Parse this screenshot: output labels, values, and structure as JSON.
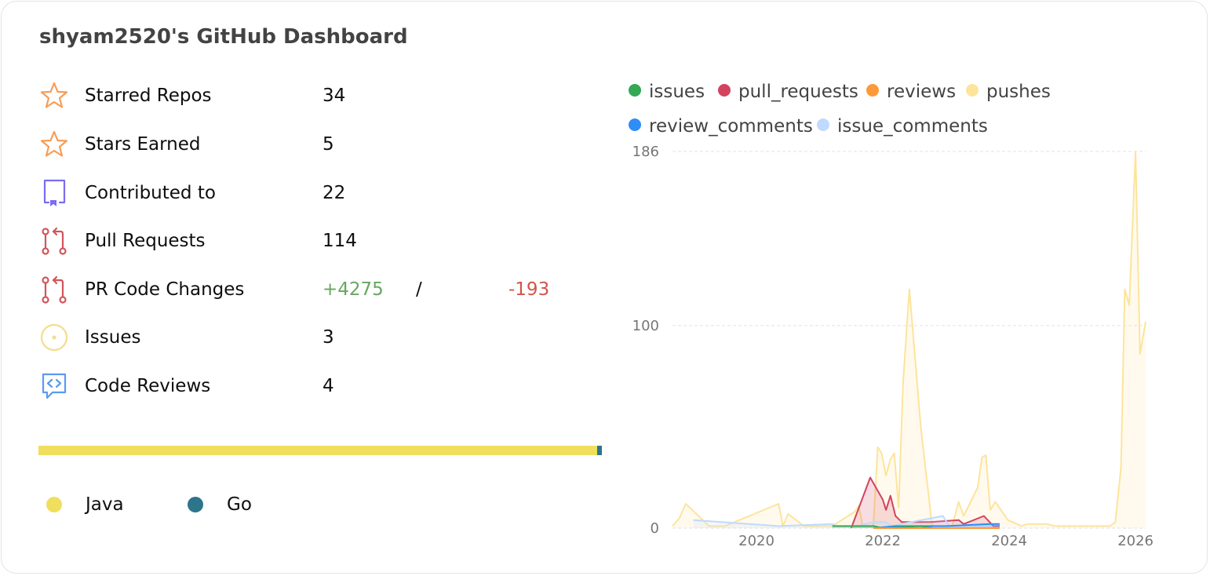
{
  "header": {
    "title": "shyam2520's GitHub Dashboard"
  },
  "stats": [
    {
      "icon": "star-icon",
      "label": "Starred Repos",
      "value": "34",
      "color": "#f89c55"
    },
    {
      "icon": "star-icon",
      "label": "Stars Earned",
      "value": "5",
      "color": "#f89c55"
    },
    {
      "icon": "repo-icon",
      "label": "Contributed to",
      "value": "22",
      "color": "#7b6cf0"
    },
    {
      "icon": "git-pull-request-icon",
      "label": "Pull Requests",
      "value": "114",
      "color": "#d1555a"
    },
    {
      "icon": "git-pull-request-icon",
      "label": "PR Code Changes",
      "additions": "+4275",
      "separator": "/",
      "deletions": "-193",
      "color": "#d1555a",
      "additions_color": "#68a660",
      "deletions_color": "#d1554a"
    },
    {
      "icon": "issue-opened-icon",
      "label": "Issues",
      "value": "3",
      "color": "#f5dc8f"
    },
    {
      "icon": "code-review-icon",
      "label": "Code Reviews",
      "value": "4",
      "color": "#5b9af1"
    }
  ],
  "languages": [
    {
      "name": "Java",
      "color": "#f0df5c",
      "percent": 99.1
    },
    {
      "name": "Go",
      "color": "#2c758a",
      "percent": 0.9
    }
  ],
  "legend": [
    {
      "name": "issues",
      "color": "#34a853"
    },
    {
      "name": "pull_requests",
      "color": "#d3435e"
    },
    {
      "name": "reviews",
      "color": "#fb9a3a"
    },
    {
      "name": "pushes",
      "color": "#fde49c"
    },
    {
      "name": "review_comments",
      "color": "#2f8ef5"
    },
    {
      "name": "issue_comments",
      "color": "#bfdafd"
    }
  ],
  "axis": {
    "y_ticks": [
      "0",
      "100",
      "186"
    ],
    "x_ticks": [
      "2020",
      "2022",
      "2024",
      "2026"
    ]
  },
  "chart_data": {
    "type": "area",
    "title": "",
    "xlabel": "",
    "ylabel": "",
    "ylim": [
      0,
      186
    ],
    "xlim": [
      2018.67,
      2026.16
    ],
    "grid": true,
    "legend_position": "top",
    "x_ticks": [
      2020,
      2022,
      2024,
      2026
    ],
    "y_ticks": [
      0,
      100,
      186
    ],
    "series": [
      {
        "name": "pushes",
        "color": "#fde49c",
        "points": [
          [
            2018.67,
            1
          ],
          [
            2018.78,
            5
          ],
          [
            2018.88,
            12
          ],
          [
            2019.25,
            1
          ],
          [
            2019.5,
            1
          ],
          [
            2020.35,
            12
          ],
          [
            2020.42,
            1
          ],
          [
            2020.5,
            7
          ],
          [
            2020.75,
            1
          ],
          [
            2021.2,
            1
          ],
          [
            2021.55,
            8
          ],
          [
            2021.62,
            11
          ],
          [
            2021.68,
            1
          ],
          [
            2021.85,
            1
          ],
          [
            2021.92,
            40
          ],
          [
            2021.98,
            37
          ],
          [
            2022.05,
            26
          ],
          [
            2022.12,
            34
          ],
          [
            2022.18,
            37
          ],
          [
            2022.25,
            10
          ],
          [
            2022.32,
            72
          ],
          [
            2022.42,
            118
          ],
          [
            2022.6,
            50
          ],
          [
            2022.78,
            1
          ],
          [
            2023.1,
            1
          ],
          [
            2023.2,
            13
          ],
          [
            2023.28,
            6
          ],
          [
            2023.5,
            20
          ],
          [
            2023.57,
            35
          ],
          [
            2023.63,
            36
          ],
          [
            2023.7,
            9
          ],
          [
            2023.78,
            13
          ],
          [
            2023.98,
            4
          ],
          [
            2024.2,
            1
          ],
          [
            2024.28,
            2
          ],
          [
            2024.6,
            2
          ],
          [
            2024.72,
            1
          ],
          [
            2025.6,
            1
          ],
          [
            2025.68,
            3
          ],
          [
            2025.77,
            30
          ],
          [
            2025.83,
            118
          ],
          [
            2025.9,
            110
          ],
          [
            2026.0,
            186
          ],
          [
            2026.07,
            86
          ],
          [
            2026.16,
            102
          ]
        ]
      },
      {
        "name": "pull_requests",
        "color": "#d3435e",
        "points": [
          [
            2021.5,
            0
          ],
          [
            2021.8,
            25
          ],
          [
            2022.0,
            14
          ],
          [
            2022.05,
            9
          ],
          [
            2022.12,
            16
          ],
          [
            2022.2,
            6
          ],
          [
            2022.3,
            3
          ],
          [
            2022.75,
            3
          ],
          [
            2023.2,
            4
          ],
          [
            2023.28,
            2
          ],
          [
            2023.6,
            6
          ],
          [
            2023.75,
            1
          ],
          [
            2023.85,
            1
          ]
        ]
      },
      {
        "name": "issue_comments",
        "color": "#bfdafd",
        "points": [
          [
            2019.0,
            4
          ],
          [
            2020.35,
            1
          ],
          [
            2021.2,
            2
          ],
          [
            2021.25,
            1
          ],
          [
            2021.6,
            1
          ],
          [
            2021.85,
            3
          ],
          [
            2022.05,
            3
          ],
          [
            2022.12,
            1
          ],
          [
            2022.95,
            6
          ],
          [
            2023.05,
            1
          ],
          [
            2023.6,
            2
          ],
          [
            2023.85,
            2
          ]
        ]
      },
      {
        "name": "review_comments",
        "color": "#2f8ef5",
        "points": [
          [
            2021.85,
            0
          ],
          [
            2022.2,
            1
          ],
          [
            2023.0,
            1
          ],
          [
            2023.7,
            2
          ],
          [
            2023.85,
            2
          ]
        ]
      },
      {
        "name": "issues",
        "color": "#34a853",
        "points": [
          [
            2021.2,
            1
          ],
          [
            2021.65,
            1
          ],
          [
            2021.85,
            1
          ],
          [
            2022.0,
            0
          ],
          [
            2022.6,
            1
          ],
          [
            2022.8,
            0
          ]
        ]
      },
      {
        "name": "reviews",
        "color": "#fb9a3a",
        "points": [
          [
            2021.85,
            0
          ],
          [
            2022.2,
            0
          ],
          [
            2023.0,
            0
          ],
          [
            2023.85,
            0
          ]
        ]
      }
    ]
  }
}
